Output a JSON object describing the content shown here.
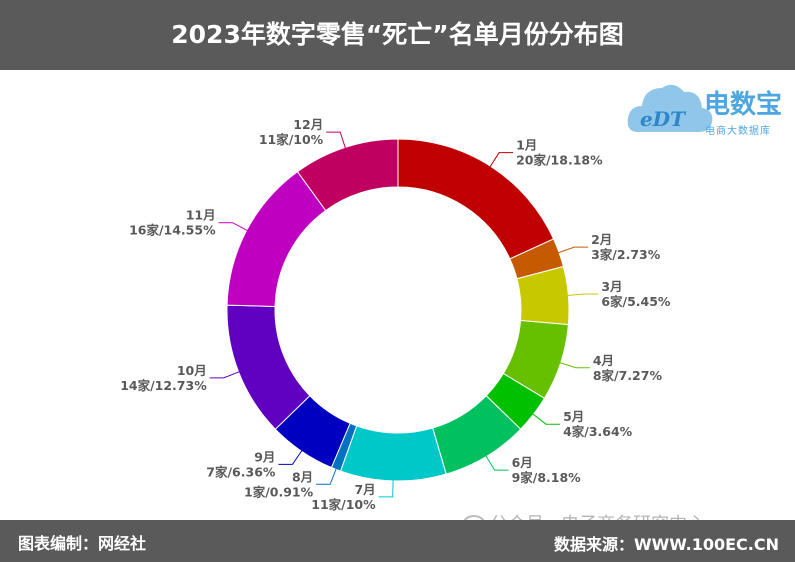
{
  "title": "2023年数字零售“死亡”名单月份分布图",
  "footer": {
    "left": "图表编制：网经社",
    "right": "数据来源：WWW.100EC.CN",
    "watermark": "公众号 · 电子商务研究中心"
  },
  "logo": {
    "name": "电数宝",
    "sub": "电商大数据库",
    "mark": "eDT"
  },
  "chart_data": {
    "type": "pie",
    "donut": true,
    "categories": [
      "1月",
      "2月",
      "3月",
      "4月",
      "5月",
      "6月",
      "7月",
      "8月",
      "9月",
      "10月",
      "11月",
      "12月"
    ],
    "values": [
      20,
      3,
      6,
      8,
      4,
      9,
      11,
      1,
      7,
      14,
      16,
      11
    ],
    "value_labels": [
      "20家/18.18%",
      "3家/2.73%",
      "6家/5.45%",
      "8家/7.27%",
      "4家/3.64%",
      "9家/8.18%",
      "11家/10%",
      "1家/0.91%",
      "7家/6.36%",
      "14家/12.73%",
      "16家/14.55%",
      "11家/10%"
    ],
    "colors": [
      "#c00000",
      "#c55a00",
      "#c8c800",
      "#66c000",
      "#00c000",
      "#00c060",
      "#00c8c8",
      "#0070c0",
      "#0000c0",
      "#6000c0",
      "#c000c0",
      "#c00060"
    ],
    "legend": "none"
  }
}
